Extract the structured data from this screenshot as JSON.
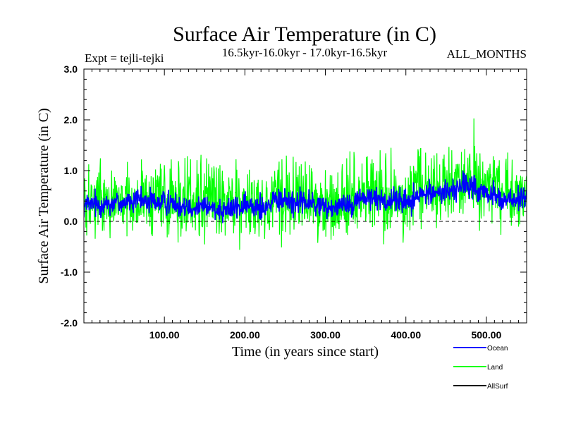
{
  "chart_data": {
    "type": "line",
    "title": "Surface Air Temperature (in C)",
    "subtitle_left": "Expt = tejli-tejki",
    "subtitle_center": "16.5kyr-16.0kyr - 17.0kyr-16.5kyr",
    "subtitle_right": "ALL_MONTHS",
    "xlabel": "Time (in years since start)",
    "ylabel": "Surface Air Temperature (in C)",
    "xlim": [
      0,
      550
    ],
    "ylim": [
      -2.0,
      3.0
    ],
    "xticks": [
      100,
      200,
      300,
      400,
      500
    ],
    "xtick_labels": [
      "100.00",
      "200.00",
      "300.00",
      "400.00",
      "500.00"
    ],
    "yticks": [
      -2.0,
      -1.0,
      0.0,
      1.0,
      2.0,
      3.0
    ],
    "ytick_labels": [
      "-2.0",
      "-1.0",
      "0.0",
      "1.0",
      "2.0",
      "3.0"
    ],
    "zero_line": true,
    "legend_position": "bottom-right",
    "series": [
      {
        "name": "Ocean",
        "color": "#0000ff",
        "trend_x": [
          0,
          25,
          50,
          75,
          100,
          125,
          150,
          175,
          200,
          225,
          250,
          275,
          300,
          325,
          350,
          375,
          400,
          425,
          450,
          475,
          500,
          525,
          550
        ],
        "trend_y": [
          0.3,
          0.35,
          0.38,
          0.4,
          0.38,
          0.33,
          0.28,
          0.25,
          0.28,
          0.32,
          0.42,
          0.38,
          0.27,
          0.35,
          0.48,
          0.42,
          0.4,
          0.55,
          0.58,
          0.72,
          0.55,
          0.42,
          0.45
        ],
        "noise_amplitude": 0.22
      },
      {
        "name": "Land",
        "color": "#00ff00",
        "trend_x": [
          0,
          25,
          50,
          75,
          100,
          125,
          150,
          175,
          200,
          225,
          250,
          275,
          300,
          325,
          350,
          375,
          400,
          425,
          450,
          475,
          500,
          525,
          550
        ],
        "trend_y": [
          0.35,
          0.4,
          0.42,
          0.45,
          0.42,
          0.38,
          0.33,
          0.3,
          0.33,
          0.38,
          0.48,
          0.44,
          0.32,
          0.42,
          0.55,
          0.5,
          0.48,
          0.62,
          0.68,
          0.8,
          0.62,
          0.5,
          0.52
        ],
        "noise_amplitude": 0.65
      },
      {
        "name": "AllSurf",
        "color": "#000000",
        "trend_x": [],
        "trend_y": [],
        "noise_amplitude": 0
      }
    ]
  }
}
